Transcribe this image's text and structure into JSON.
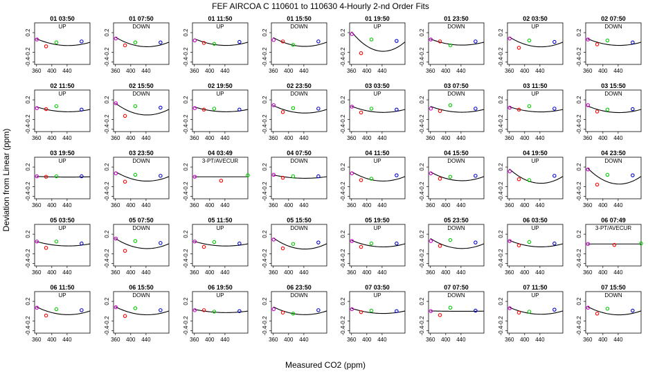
{
  "page": {
    "title": "FEF   AIRCOA C   110601 to 110630   4-Hourly 2-nd Order Fits",
    "xlabel": "Measured CO2 (ppm)",
    "ylabel": "Deviation from Linear (ppm)"
  },
  "chart_data": {
    "type": "scatter",
    "grid": false,
    "panel_layout": {
      "rows": 5,
      "cols": 8
    },
    "xlim": [
      355,
      500
    ],
    "ylim": [
      -0.45,
      0.4
    ],
    "x_ticks": [
      360,
      400,
      440
    ],
    "y_ticks": [
      0.2,
      -0.2,
      -0.4
    ],
    "y_tick_labels": [
      "0.2",
      "-0.2",
      "-0.4"
    ],
    "colors": {
      "std1": "#cc00cc",
      "std2": "#ff0000",
      "std3": "#00cc00",
      "std4": "#0000cc",
      "fit": "#000000"
    },
    "panels": [
      {
        "title": "01 03:50",
        "label": "UP",
        "fit": [
          0.074,
          -0.003338,
          2.017e-05
        ],
        "points": [
          [
            361,
            0.06
          ],
          [
            385,
            -0.08
          ],
          [
            412,
            0.0
          ],
          [
            478,
            0.02
          ]
        ]
      },
      {
        "title": "01 07:50",
        "label": "DOWN",
        "fit": [
          0.107,
          -0.004707,
          2.844e-05
        ],
        "points": [
          [
            361,
            0.08
          ],
          [
            385,
            -0.06
          ],
          [
            412,
            0.0
          ],
          [
            478,
            0.0
          ]
        ]
      },
      {
        "title": "01 11:50",
        "label": "UP",
        "fit": [
          0.076,
          -0.003328,
          2.01e-05
        ],
        "points": [
          [
            361,
            0.04
          ],
          [
            385,
            -0.01
          ],
          [
            412,
            -0.03
          ],
          [
            478,
            0.01
          ]
        ]
      },
      {
        "title": "01 15:50",
        "label": "DOWN",
        "fit": [
          0.099,
          -0.004354,
          2.631e-05
        ],
        "points": [
          [
            361,
            0.05
          ],
          [
            385,
            0.02
          ],
          [
            412,
            -0.05
          ],
          [
            478,
            0.02
          ]
        ]
      },
      {
        "title": "01 19:50",
        "label": "UP",
        "fit": [
          0.219,
          -0.009677,
          5.847e-05
        ],
        "points": [
          [
            361,
            0.17
          ],
          [
            385,
            -0.22
          ],
          [
            412,
            0.06
          ],
          [
            478,
            0.03
          ]
        ]
      },
      {
        "title": "01 23:50",
        "label": "DOWN",
        "fit": [
          0.069,
          -0.002994,
          1.809e-05
        ],
        "points": [
          [
            361,
            0.06
          ],
          [
            385,
            0.02
          ],
          [
            412,
            -0.06
          ],
          [
            478,
            0.02
          ]
        ]
      },
      {
        "title": "02 03:50",
        "label": "UP",
        "fit": [
          0.111,
          -0.004868,
          2.941e-05
        ],
        "points": [
          [
            361,
            0.08
          ],
          [
            385,
            -0.11
          ],
          [
            412,
            0.04
          ],
          [
            478,
            0.01
          ]
        ]
      },
      {
        "title": "02 07:50",
        "label": "DOWN",
        "fit": [
          0.074,
          -0.003267,
          1.974e-05
        ],
        "points": [
          [
            361,
            0.06
          ],
          [
            385,
            -0.04
          ],
          [
            412,
            0.04
          ],
          [
            478,
            0.0
          ]
        ]
      },
      {
        "title": "02 11:50",
        "label": "UP",
        "fit": [
          0.055,
          -0.002406,
          1.454e-05
        ],
        "points": [
          [
            361,
            0.03
          ],
          [
            385,
            0.01
          ],
          [
            412,
            0.07
          ],
          [
            478,
            0.0
          ]
        ]
      },
      {
        "title": "02 15:50",
        "label": "DOWN",
        "fit": [
          0.13,
          -0.005797,
          3.503e-05
        ],
        "points": [
          [
            361,
            0.13
          ],
          [
            385,
            -0.13
          ],
          [
            412,
            0.07
          ],
          [
            478,
            0.04
          ]
        ]
      },
      {
        "title": "02 19:50",
        "label": "UP",
        "fit": [
          0.054,
          -0.002377,
          1.436e-05
        ],
        "points": [
          [
            361,
            0.03
          ],
          [
            385,
            0.0
          ],
          [
            412,
            0.02
          ],
          [
            478,
            0.0
          ]
        ]
      },
      {
        "title": "02 23:50",
        "label": "DOWN",
        "fit": [
          0.084,
          -0.003734,
          2.256e-05
        ],
        "points": [
          [
            361,
            0.09
          ],
          [
            385,
            -0.05
          ],
          [
            412,
            0.03
          ],
          [
            478,
            0.02
          ]
        ]
      },
      {
        "title": "03 03:50",
        "label": "UP",
        "fit": [
          0.069,
          -0.00305,
          1.843e-05
        ],
        "points": [
          [
            361,
            0.06
          ],
          [
            385,
            -0.06
          ],
          [
            412,
            0.02
          ],
          [
            478,
            0.0
          ]
        ]
      },
      {
        "title": "03 07:50",
        "label": "DOWN",
        "fit": [
          0.066,
          -0.002897,
          1.75e-05
        ],
        "points": [
          [
            361,
            0.02
          ],
          [
            385,
            -0.03
          ],
          [
            412,
            0.09
          ],
          [
            478,
            0.02
          ]
        ]
      },
      {
        "title": "03 11:50",
        "label": "UP",
        "fit": [
          0.057,
          -0.002528,
          1.527e-05
        ],
        "points": [
          [
            361,
            0.04
          ],
          [
            385,
            0.0
          ],
          [
            412,
            0.07
          ],
          [
            478,
            0.02
          ]
        ]
      },
      {
        "title": "03 15:50",
        "label": "DOWN",
        "fit": [
          0.074,
          -0.003258,
          1.969e-05
        ],
        "points": [
          [
            361,
            0.09
          ],
          [
            385,
            -0.04
          ],
          [
            412,
            0.0
          ],
          [
            478,
            0.01
          ]
        ]
      },
      {
        "title": "03 19:50",
        "label": "UP",
        "fit": [
          0.007,
          -0.000322,
          1.94e-06
        ],
        "points": [
          [
            361,
            0.01
          ],
          [
            385,
            0.0
          ],
          [
            412,
            0.01
          ],
          [
            478,
            0.01
          ]
        ]
      },
      {
        "title": "03 23:50",
        "label": "DOWN",
        "fit": [
          0.106,
          -0.004694,
          2.836e-05
        ],
        "points": [
          [
            361,
            0.07
          ],
          [
            385,
            -0.1
          ],
          [
            412,
            0.04
          ],
          [
            478,
            0.02
          ]
        ]
      },
      {
        "title": "04 03:49",
        "label": "3-PT/AVECUR",
        "fit": [
          0.0,
          0.0,
          0.0
        ],
        "points": [
          [
            361,
            0.0
          ],
          [
            430,
            -0.08
          ],
          [
            500,
            0.03
          ]
        ]
      },
      {
        "title": "04 07:50",
        "label": "DOWN",
        "fit": [
          0.037,
          -0.001637,
          9.89e-06
        ],
        "points": [
          [
            361,
            0.04
          ],
          [
            385,
            -0.02
          ],
          [
            412,
            0.01
          ],
          [
            478,
            0.01
          ]
        ]
      },
      {
        "title": "04 11:50",
        "label": "UP",
        "fit": [
          0.106,
          -0.004669,
          2.821e-05
        ],
        "points": [
          [
            361,
            0.07
          ],
          [
            385,
            -0.07
          ],
          [
            412,
            -0.04
          ],
          [
            478,
            0.03
          ]
        ]
      },
      {
        "title": "04 15:50",
        "label": "DOWN",
        "fit": [
          0.099,
          -0.004334,
          2.619e-05
        ],
        "points": [
          [
            361,
            0.07
          ],
          [
            385,
            -0.04
          ],
          [
            412,
            0.0
          ],
          [
            478,
            0.02
          ]
        ]
      },
      {
        "title": "04 19:50",
        "label": "UP",
        "fit": [
          0.161,
          -0.007103,
          4.292e-05
        ],
        "points": [
          [
            361,
            0.11
          ],
          [
            385,
            -0.05
          ],
          [
            412,
            -0.07
          ],
          [
            478,
            0.02
          ]
        ]
      },
      {
        "title": "04 23:50",
        "label": "DOWN",
        "fit": [
          0.178,
          -0.007903,
          4.775e-05
        ],
        "points": [
          [
            361,
            0.15
          ],
          [
            385,
            -0.16
          ],
          [
            412,
            0.04
          ],
          [
            478,
            0.03
          ]
        ]
      },
      {
        "title": "05 03:50",
        "label": "UP",
        "fit": [
          0.05,
          -0.002195,
          1.326e-05
        ],
        "points": [
          [
            361,
            0.05
          ],
          [
            385,
            -0.08
          ],
          [
            412,
            0.05
          ],
          [
            478,
            0.01
          ]
        ]
      },
      {
        "title": "05 07:50",
        "label": "DOWN",
        "fit": [
          0.112,
          -0.004993,
          3.017e-05
        ],
        "points": [
          [
            361,
            0.11
          ],
          [
            385,
            -0.14
          ],
          [
            412,
            0.06
          ],
          [
            478,
            0.02
          ]
        ]
      },
      {
        "title": "05 11:50",
        "label": "UP",
        "fit": [
          0.052,
          -0.002272,
          1.373e-05
        ],
        "points": [
          [
            361,
            0.05
          ],
          [
            385,
            -0.06
          ],
          [
            412,
            0.04
          ],
          [
            478,
            0.01
          ]
        ]
      },
      {
        "title": "05 15:50",
        "label": "DOWN",
        "fit": [
          0.125,
          -0.005543,
          3.349e-05
        ],
        "points": [
          [
            361,
            0.09
          ],
          [
            385,
            -0.09
          ],
          [
            412,
            0.0
          ],
          [
            478,
            0.03
          ]
        ]
      },
      {
        "title": "05 19:50",
        "label": "UP",
        "fit": [
          0.074,
          -0.003245,
          1.961e-05
        ],
        "points": [
          [
            361,
            0.06
          ],
          [
            385,
            -0.06
          ],
          [
            412,
            0.01
          ],
          [
            478,
            0.01
          ]
        ]
      },
      {
        "title": "05 23:50",
        "label": "DOWN",
        "fit": [
          0.111,
          -0.004923,
          2.975e-05
        ],
        "points": [
          [
            361,
            0.06
          ],
          [
            385,
            -0.04
          ],
          [
            412,
            0.08
          ],
          [
            478,
            0.03
          ]
        ]
      },
      {
        "title": "06 03:50",
        "label": "UP",
        "fit": [
          0.073,
          -0.003206,
          1.937e-05
        ],
        "points": [
          [
            361,
            0.06
          ],
          [
            385,
            -0.03
          ],
          [
            412,
            0.04
          ],
          [
            478,
            0.01
          ]
        ]
      },
      {
        "title": "06 07:49",
        "label": "3-PT/AVECUR",
        "fit": [
          0.0,
          0.0,
          0.0
        ],
        "points": [
          [
            361,
            0.0
          ],
          [
            430,
            -0.02
          ],
          [
            500,
            0.01
          ]
        ]
      },
      {
        "title": "06 11:50",
        "label": "UP",
        "fit": [
          0.087,
          -0.003851,
          2.327e-05
        ],
        "points": [
          [
            361,
            0.07
          ],
          [
            385,
            -0.09
          ],
          [
            412,
            0.04
          ],
          [
            478,
            0.02
          ]
        ]
      },
      {
        "title": "06 15:50",
        "label": "DOWN",
        "fit": [
          0.089,
          -0.003952,
          2.388e-05
        ],
        "points": [
          [
            361,
            0.08
          ],
          [
            385,
            -0.1
          ],
          [
            412,
            0.06
          ],
          [
            478,
            0.02
          ]
        ]
      },
      {
        "title": "06 19:50",
        "label": "UP",
        "fit": [
          0.036,
          -0.001601,
          9.67e-06
        ],
        "points": [
          [
            361,
            0.02
          ],
          [
            385,
            0.02
          ],
          [
            412,
            -0.01
          ],
          [
            478,
            0.0
          ]
        ]
      },
      {
        "title": "06 23:50",
        "label": "DOWN",
        "fit": [
          0.087,
          -0.003843,
          2.322e-05
        ],
        "points": [
          [
            361,
            0.04
          ],
          [
            385,
            -0.03
          ],
          [
            412,
            -0.05
          ],
          [
            478,
            0.02
          ]
        ]
      },
      {
        "title": "07 03:50",
        "label": "UP",
        "fit": [
          0.058,
          -0.002554,
          1.543e-05
        ],
        "points": [
          [
            361,
            0.04
          ],
          [
            385,
            -0.02
          ],
          [
            412,
            0.01
          ],
          [
            478,
            0.0
          ]
        ]
      },
      {
        "title": "07 07:50",
        "label": "DOWN",
        "fit": [
          0.004,
          -0.000175,
          1.06e-06
        ],
        "points": [
          [
            361,
            0.0
          ],
          [
            385,
            -0.08
          ],
          [
            412,
            0.07
          ],
          [
            478,
            0.01
          ]
        ]
      },
      {
        "title": "07 11:50",
        "label": "UP",
        "fit": [
          0.078,
          -0.003428,
          2.071e-05
        ],
        "points": [
          [
            361,
            0.06
          ],
          [
            385,
            -0.03
          ],
          [
            412,
            -0.01
          ],
          [
            478,
            0.03
          ]
        ]
      },
      {
        "title": "07 15:50",
        "label": "DOWN",
        "fit": [
          0.092,
          -0.004053,
          2.449e-05
        ],
        "points": [
          [
            361,
            0.07
          ],
          [
            385,
            -0.05
          ],
          [
            412,
            0.05
          ],
          [
            478,
            0.01
          ]
        ]
      }
    ]
  }
}
